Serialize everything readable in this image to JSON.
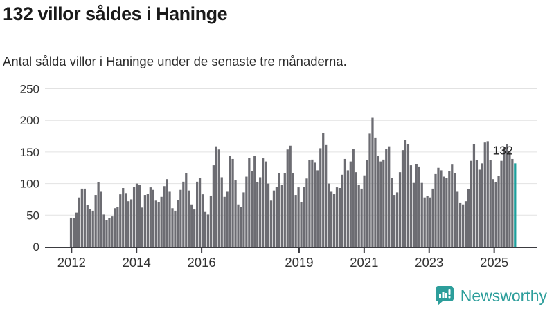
{
  "header": {
    "title": "132 villor såldes i Haninge",
    "subtitle": "Antal sålda villor i Haninge under de senaste tre månaderna."
  },
  "chart_data": {
    "type": "bar",
    "title": "132 villor såldes i Haninge",
    "subtitle": "Antal sålda villor i Haninge under de senaste tre månaderna.",
    "x_start": "2012-01",
    "frequency": "monthly",
    "ylim": [
      0,
      250
    ],
    "yticks": [
      0,
      50,
      100,
      150,
      200,
      250
    ],
    "xtick_years": [
      2012,
      2014,
      2016,
      2019,
      2021,
      2023,
      2025
    ],
    "grid": "horizontal",
    "legend": "none",
    "bar_color": "#6c6c72",
    "highlight_color": "#1d9f9c",
    "axis_color": "#3b3b40",
    "grid_color": "#e2e2e2",
    "tick_label_color": "#333333",
    "annotation": {
      "text": "132",
      "target": "last-bar"
    },
    "values": [
      46,
      45,
      54,
      78,
      92,
      92,
      66,
      60,
      57,
      82,
      102,
      87,
      51,
      42,
      45,
      48,
      61,
      63,
      83,
      93,
      85,
      72,
      75,
      95,
      100,
      98,
      62,
      82,
      84,
      94,
      90,
      73,
      71,
      79,
      96,
      107,
      87,
      61,
      57,
      74,
      90,
      103,
      116,
      89,
      67,
      59,
      103,
      109,
      83,
      55,
      51,
      81,
      129,
      159,
      154,
      110,
      79,
      87,
      144,
      139,
      105,
      67,
      63,
      86,
      111,
      141,
      120,
      144,
      102,
      110,
      140,
      135,
      100,
      73,
      89,
      95,
      116,
      98,
      117,
      154,
      160,
      117,
      82,
      94,
      71,
      95,
      108,
      137,
      138,
      133,
      121,
      156,
      180,
      161,
      100,
      87,
      84,
      94,
      93,
      114,
      139,
      121,
      135,
      155,
      118,
      98,
      92,
      113,
      137,
      179,
      204,
      173,
      144,
      135,
      138,
      155,
      159,
      109,
      82,
      86,
      118,
      153,
      169,
      162,
      129,
      101,
      131,
      127,
      101,
      78,
      80,
      78,
      92,
      115,
      125,
      121,
      111,
      109,
      120,
      130,
      116,
      87,
      69,
      67,
      72,
      91,
      136,
      163,
      137,
      122,
      132,
      165,
      167,
      137,
      107,
      102,
      112,
      136,
      158,
      163,
      151,
      139,
      132
    ],
    "highlight_last": true
  },
  "footer": {
    "brand": "Newsworthy",
    "brand_color": "#2d9e9b",
    "logo_icon": "newsworthy-bar-chart-bubble-icon"
  }
}
